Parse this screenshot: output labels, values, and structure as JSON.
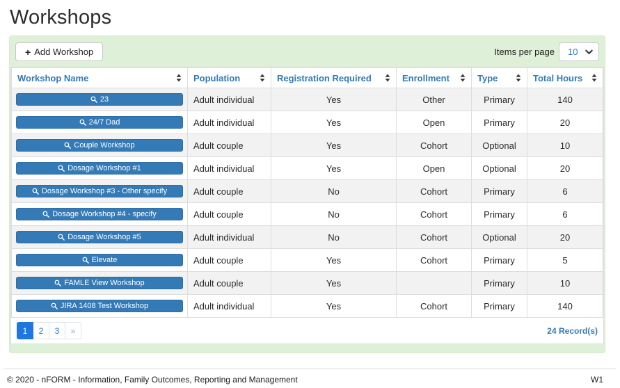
{
  "page": {
    "title": "Workshops"
  },
  "toolbar": {
    "add_button_label": "Add Workshop",
    "items_per_page_label": "Items per page",
    "items_per_page_value": "10"
  },
  "table": {
    "columns": [
      "Workshop Name",
      "Population",
      "Registration Required",
      "Enrollment",
      "Type",
      "Total Hours"
    ],
    "rows": [
      {
        "name": "23",
        "population": "Adult individual",
        "registration_required": "Yes",
        "enrollment": "Other",
        "type": "Primary",
        "total_hours": "140"
      },
      {
        "name": "24/7 Dad",
        "population": "Adult individual",
        "registration_required": "Yes",
        "enrollment": "Open",
        "type": "Primary",
        "total_hours": "20"
      },
      {
        "name": "Couple Workshop",
        "population": "Adult couple",
        "registration_required": "Yes",
        "enrollment": "Cohort",
        "type": "Optional",
        "total_hours": "10"
      },
      {
        "name": "Dosage Workshop #1",
        "population": "Adult individual",
        "registration_required": "Yes",
        "enrollment": "Open",
        "type": "Optional",
        "total_hours": "20"
      },
      {
        "name": "Dosage Workshop #3 - Other specify",
        "population": "Adult couple",
        "registration_required": "No",
        "enrollment": "Cohort",
        "type": "Primary",
        "total_hours": "6"
      },
      {
        "name": "Dosage Workshop #4 - specify",
        "population": "Adult couple",
        "registration_required": "No",
        "enrollment": "Cohort",
        "type": "Primary",
        "total_hours": "6"
      },
      {
        "name": "Dosage Workshop #5",
        "population": "Adult individual",
        "registration_required": "No",
        "enrollment": "Cohort",
        "type": "Optional",
        "total_hours": "20"
      },
      {
        "name": "Elevate",
        "population": "Adult couple",
        "registration_required": "Yes",
        "enrollment": "Cohort",
        "type": "Primary",
        "total_hours": "5"
      },
      {
        "name": "FAMLE View Workshop",
        "population": "Adult couple",
        "registration_required": "Yes",
        "enrollment": "",
        "type": "Primary",
        "total_hours": "10"
      },
      {
        "name": "JIRA 1408 Test Workshop",
        "population": "Adult individual",
        "registration_required": "Yes",
        "enrollment": "Cohort",
        "type": "Primary",
        "total_hours": "140"
      }
    ]
  },
  "pagination": {
    "pages": [
      "1",
      "2",
      "3",
      "»"
    ],
    "active": "1",
    "records_label": "24 Record(s)"
  },
  "footer": {
    "copyright": "© 2020 - nFORM - Information, Family Outcomes, Reporting and Management",
    "version": "W1"
  },
  "icons": {
    "search": "search-icon",
    "plus": "plus-icon",
    "sort": "sort-updown-icon",
    "chevron": "chevron-down-icon"
  },
  "colors": {
    "accent_blue": "#337ab7",
    "panel_green": "#dff0d8",
    "active_page_blue": "#1d76e2",
    "stripe_gray": "#f2f2f2"
  }
}
